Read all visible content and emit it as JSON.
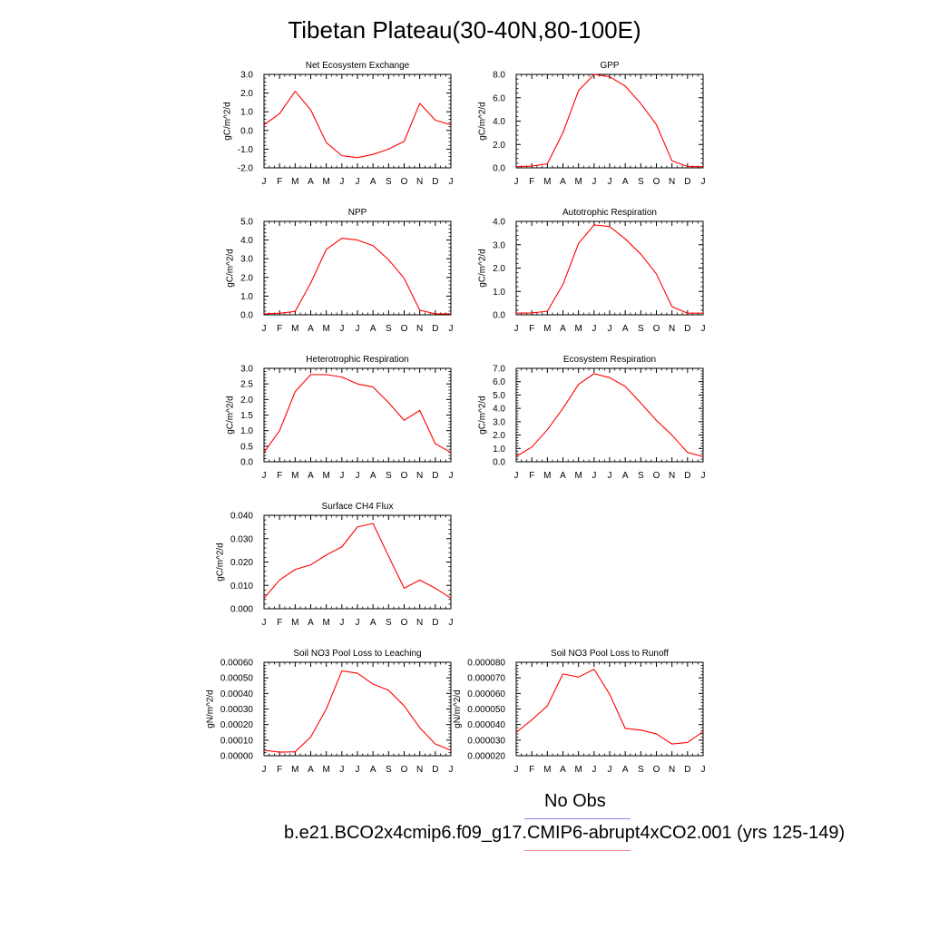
{
  "title": "Tibetan Plateau(30-40N,80-100E)",
  "colors": {
    "series": "#ff0000",
    "obs_legend": "#8a8aee",
    "case_legend": "#f08a8a"
  },
  "legend": {
    "obs_label": "No Obs",
    "case_label": "b.e21.BCO2x4cmip6.f09_g17.CMIP6-abrupt4xCO2.001 (yrs 125-149)"
  },
  "chart_data": [
    {
      "type": "line",
      "title": "Net Ecosystem Exchange",
      "ylabel": "gC/m^2/d",
      "categories": [
        "J",
        "F",
        "M",
        "A",
        "M",
        "J",
        "J",
        "A",
        "S",
        "O",
        "N",
        "D",
        "J"
      ],
      "values": [
        0.3,
        0.9,
        2.1,
        1.1,
        -0.65,
        -1.35,
        -1.45,
        -1.28,
        -1.0,
        -0.58,
        1.45,
        0.55,
        0.3
      ],
      "ylim": [
        -2.0,
        3.0
      ],
      "yticks": [
        "-2.0",
        "-1.0",
        "0.0",
        "1.0",
        "2.0",
        "3.0"
      ]
    },
    {
      "type": "line",
      "title": "GPP",
      "ylabel": "gC/m^2/d",
      "categories": [
        "J",
        "F",
        "M",
        "A",
        "M",
        "J",
        "J",
        "A",
        "S",
        "O",
        "N",
        "D",
        "J"
      ],
      "values": [
        0.1,
        0.15,
        0.35,
        3.0,
        6.6,
        8.0,
        7.8,
        7.0,
        5.5,
        3.7,
        0.6,
        0.12,
        0.1
      ],
      "ylim": [
        0.0,
        8.0
      ],
      "yticks": [
        "0.0",
        "2.0",
        "4.0",
        "6.0",
        "8.0"
      ]
    },
    {
      "type": "line",
      "title": "NPP",
      "ylabel": "gC/m^2/d",
      "categories": [
        "J",
        "F",
        "M",
        "A",
        "M",
        "J",
        "J",
        "A",
        "S",
        "O",
        "N",
        "D",
        "J"
      ],
      "values": [
        0.05,
        0.08,
        0.18,
        1.7,
        3.5,
        4.1,
        4.0,
        3.7,
        2.95,
        1.95,
        0.25,
        0.05,
        0.05
      ],
      "ylim": [
        0.0,
        5.0
      ],
      "yticks": [
        "0.0",
        "1.0",
        "2.0",
        "3.0",
        "4.0",
        "5.0"
      ]
    },
    {
      "type": "line",
      "title": "Autotrophic Respiration",
      "ylabel": "gC/m^2/d",
      "categories": [
        "J",
        "F",
        "M",
        "A",
        "M",
        "J",
        "J",
        "A",
        "S",
        "O",
        "N",
        "D",
        "J"
      ],
      "values": [
        0.07,
        0.08,
        0.15,
        1.3,
        3.05,
        3.85,
        3.78,
        3.25,
        2.6,
        1.75,
        0.35,
        0.07,
        0.07
      ],
      "ylim": [
        0.0,
        4.0
      ],
      "yticks": [
        "0.0",
        "1.0",
        "2.0",
        "3.0",
        "4.0"
      ]
    },
    {
      "type": "line",
      "title": "Heterotrophic Respiration",
      "ylabel": "gC/m^2/d",
      "categories": [
        "J",
        "F",
        "M",
        "A",
        "M",
        "J",
        "J",
        "A",
        "S",
        "O",
        "N",
        "D",
        "J"
      ],
      "values": [
        0.3,
        1.0,
        2.25,
        2.8,
        2.8,
        2.72,
        2.5,
        2.4,
        1.9,
        1.33,
        1.65,
        0.58,
        0.3
      ],
      "ylim": [
        0.0,
        3.0
      ],
      "yticks": [
        "0.0",
        "0.5",
        "1.0",
        "1.5",
        "2.0",
        "2.5",
        "3.0"
      ]
    },
    {
      "type": "line",
      "title": "Ecosystem Respiration",
      "ylabel": "gC/m^2/d",
      "categories": [
        "J",
        "F",
        "M",
        "A",
        "M",
        "J",
        "J",
        "A",
        "S",
        "O",
        "N",
        "D",
        "J"
      ],
      "values": [
        0.4,
        1.1,
        2.4,
        4.0,
        5.8,
        6.6,
        6.3,
        5.65,
        4.4,
        3.1,
        2.0,
        0.7,
        0.4
      ],
      "ylim": [
        0.0,
        7.0
      ],
      "yticks": [
        "0.0",
        "1.0",
        "2.0",
        "3.0",
        "4.0",
        "5.0",
        "6.0",
        "7.0"
      ]
    },
    {
      "type": "line",
      "title": "Surface CH4 Flux",
      "ylabel": "gC/m^2/d",
      "categories": [
        "J",
        "F",
        "M",
        "A",
        "M",
        "J",
        "J",
        "A",
        "S",
        "O",
        "N",
        "D",
        "J"
      ],
      "values": [
        0.0045,
        0.0123,
        0.0168,
        0.0188,
        0.023,
        0.0265,
        0.035,
        0.0365,
        0.0225,
        0.0088,
        0.0123,
        0.0088,
        0.0045
      ],
      "ylim": [
        0.0,
        0.04
      ],
      "yticks": [
        "0.000",
        "0.010",
        "0.020",
        "0.030",
        "0.040"
      ]
    },
    {
      "type": "line",
      "title": "Soil NO3 Pool Loss to Leaching",
      "ylabel": "gN/m^2/d",
      "categories": [
        "J",
        "F",
        "M",
        "A",
        "M",
        "J",
        "J",
        "A",
        "S",
        "O",
        "N",
        "D",
        "J"
      ],
      "values": [
        3.5e-05,
        2.3e-05,
        2.5e-05,
        0.00012,
        0.0003,
        0.000545,
        0.00053,
        0.00046,
        0.00042,
        0.00032,
        0.00018,
        7.5e-05,
        3.5e-05
      ],
      "ylim": [
        0.0,
        0.0006
      ],
      "yticks": [
        "0.00000",
        "0.00010",
        "0.00020",
        "0.00030",
        "0.00040",
        "0.00050",
        "0.00060"
      ]
    },
    {
      "type": "line",
      "title": "Soil NO3 Pool Loss to Runoff",
      "ylabel": "gN/m^2/d",
      "categories": [
        "J",
        "F",
        "M",
        "A",
        "M",
        "J",
        "J",
        "A",
        "S",
        "O",
        "N",
        "D",
        "J"
      ],
      "values": [
        3.5e-05,
        4.3e-05,
        5.2e-05,
        7.25e-05,
        7.05e-05,
        7.55e-05,
        5.95e-05,
        3.75e-05,
        3.65e-05,
        3.4e-05,
        2.75e-05,
        2.85e-05,
        3.55e-05
      ],
      "ylim": [
        2e-05,
        8e-05
      ],
      "yticks": [
        "0.000020",
        "0.000030",
        "0.000040",
        "0.000050",
        "0.000060",
        "0.000070",
        "0.000080"
      ]
    }
  ]
}
